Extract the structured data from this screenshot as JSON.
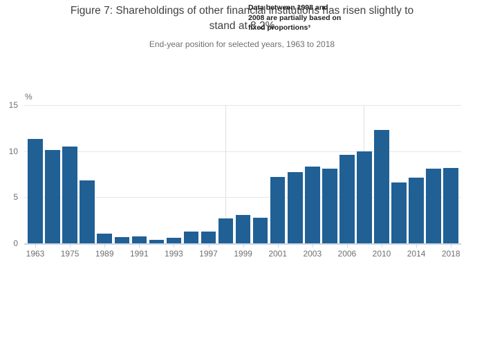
{
  "render": {
    "title": "Figure 7: Shareholdings of other financial institutions has risen slightly to\nstand at 8.2%",
    "annotation": "Data between 1998 and\n2008 are partially based on\nfixed proportions³"
  },
  "chart_data": {
    "type": "bar",
    "title": "Figure 7: Shareholdings of other financial institutions has risen slightly to stand at 8.2%",
    "subtitle": "End-year position for selected years, 1963 to 2018",
    "annotation": "Data between 1998 and 2008 are partially based on fixed proportions³",
    "unit_label": "%",
    "xlabel": "",
    "ylabel": "%",
    "ylim": [
      0,
      15
    ],
    "yticks": [
      0,
      5,
      10,
      15
    ],
    "grid": "horizontal",
    "legend": "none",
    "categories": [
      "1963",
      "1969",
      "1975",
      "1981",
      "1989",
      "1990",
      "1991",
      "1992",
      "1993",
      "1994",
      "1997",
      "1998",
      "1999",
      "2000",
      "2001",
      "2002",
      "2003",
      "2004",
      "2006",
      "2008",
      "2010",
      "2012",
      "2014",
      "2016",
      "2018"
    ],
    "values": [
      11.3,
      10.1,
      10.5,
      6.8,
      1.1,
      0.7,
      0.8,
      0.4,
      0.6,
      1.3,
      1.3,
      2.7,
      3.1,
      2.8,
      7.2,
      7.7,
      8.3,
      8.1,
      9.6,
      10.0,
      12.3,
      6.6,
      7.1,
      8.1,
      8.2
    ],
    "x_tick_labels": [
      "1963",
      "1975",
      "1989",
      "1991",
      "1993",
      "1997",
      "1999",
      "2001",
      "2003",
      "2006",
      "2010",
      "2014",
      "2018"
    ],
    "reference_line_categories": [
      "1998",
      "2008"
    ]
  },
  "colors": {
    "bar": "#206095",
    "axis_line": "#c8d4e6",
    "gridline": "#e6e6e6",
    "reference_line": "#dfe0e2",
    "title_text": "#404042",
    "subtitle_text": "#6f6f71",
    "axis_text": "#6f6f71",
    "annotation_text": "#1d1d1f"
  }
}
